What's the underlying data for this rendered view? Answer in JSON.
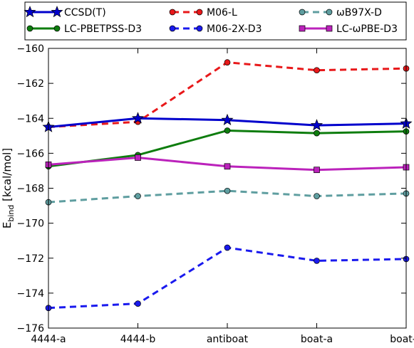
{
  "chart_data": {
    "type": "line",
    "title": "",
    "xlabel": "",
    "ylabel": "E",
    "ylabel_sub": "bind",
    "ylabel_unit": " [kcal/mol]",
    "categories": [
      "4444-a",
      "4444-b",
      "antiboat",
      "boat-a",
      "boat-b"
    ],
    "ylim": [
      -176,
      -160
    ],
    "yticks": [
      -176,
      -174,
      -172,
      -170,
      -168,
      -166,
      -164,
      -162,
      -160
    ],
    "grid": false,
    "legend_position": "top",
    "series": [
      {
        "name": "CCSD(T)",
        "values": [
          -164.5,
          -164.0,
          -164.1,
          -164.4,
          -164.3
        ],
        "color": "#0000cc",
        "dash": "solid",
        "marker": "star"
      },
      {
        "name": "M06-L",
        "values": [
          -164.5,
          -164.2,
          -160.8,
          -161.25,
          -161.15
        ],
        "color": "#e8181a",
        "dash": "dashed",
        "marker": "circle"
      },
      {
        "name": "ωB97X-D",
        "values": [
          -168.8,
          -168.45,
          -168.15,
          -168.45,
          -168.3
        ],
        "color": "#5f9ea0",
        "dash": "dashed",
        "marker": "circle"
      },
      {
        "name": "LC-PBETPSS-D3",
        "values": [
          -166.75,
          -166.1,
          -164.7,
          -164.85,
          -164.75
        ],
        "color": "#0e7d0e",
        "dash": "solid",
        "marker": "circle"
      },
      {
        "name": "M06-2X-D3",
        "values": [
          -174.85,
          -174.6,
          -171.4,
          -172.15,
          -172.05
        ],
        "color": "#1a1aee",
        "dash": "dashed",
        "marker": "circle"
      },
      {
        "name": "LC-ωPBE-D3",
        "values": [
          -166.65,
          -166.25,
          -166.75,
          -166.95,
          -166.8
        ],
        "color": "#bb22bb",
        "dash": "solid",
        "marker": "square"
      }
    ]
  }
}
